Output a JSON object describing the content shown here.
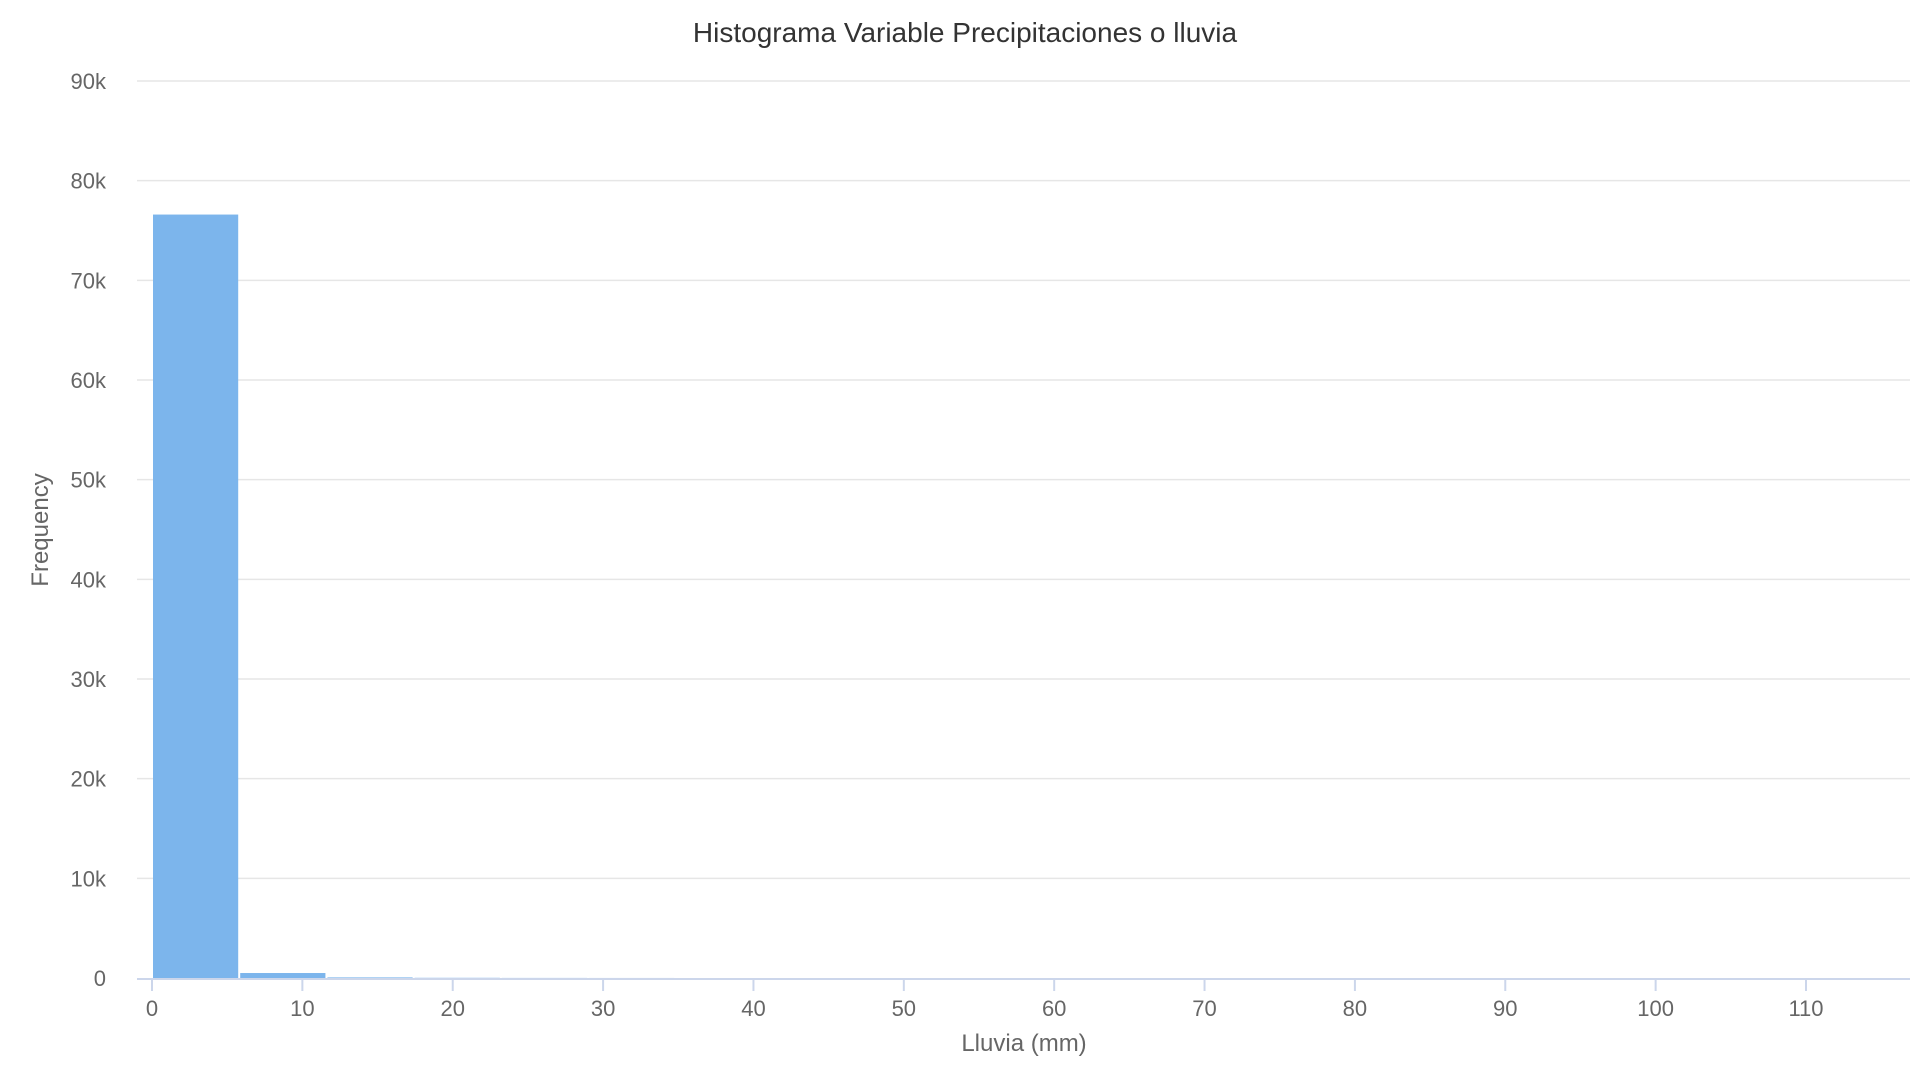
{
  "chart_data": {
    "type": "bar",
    "title": "Histograma Variable Precipitaciones o lluvia",
    "xlabel": "Lluvia (mm)",
    "ylabel": "Frequency",
    "bin_width": 5.8,
    "bins": [
      {
        "x0": 0,
        "x1": 5.8,
        "count": 76600
      },
      {
        "x0": 5.8,
        "x1": 11.6,
        "count": 500
      },
      {
        "x0": 11.6,
        "x1": 17.4,
        "count": 60
      },
      {
        "x0": 17.4,
        "x1": 23.2,
        "count": 20
      },
      {
        "x0": 23.2,
        "x1": 29.0,
        "count": 8
      },
      {
        "x0": 29.0,
        "x1": 34.8,
        "count": 4
      }
    ],
    "xlim": [
      0,
      117
    ],
    "ylim": [
      0,
      90000
    ],
    "x_ticks": [
      {
        "value": 0,
        "label": "0"
      },
      {
        "value": 10,
        "label": "10"
      },
      {
        "value": 20,
        "label": "20"
      },
      {
        "value": 30,
        "label": "30"
      },
      {
        "value": 40,
        "label": "40"
      },
      {
        "value": 50,
        "label": "50"
      },
      {
        "value": 60,
        "label": "60"
      },
      {
        "value": 70,
        "label": "70"
      },
      {
        "value": 80,
        "label": "80"
      },
      {
        "value": 90,
        "label": "90"
      },
      {
        "value": 100,
        "label": "100"
      },
      {
        "value": 110,
        "label": "110"
      }
    ],
    "y_ticks": [
      {
        "value": 0,
        "label": "0"
      },
      {
        "value": 10000,
        "label": "10k"
      },
      {
        "value": 20000,
        "label": "20k"
      },
      {
        "value": 30000,
        "label": "30k"
      },
      {
        "value": 40000,
        "label": "40k"
      },
      {
        "value": 50000,
        "label": "50k"
      },
      {
        "value": 60000,
        "label": "60k"
      },
      {
        "value": 70000,
        "label": "70k"
      },
      {
        "value": 80000,
        "label": "80k"
      },
      {
        "value": 90000,
        "label": "90k"
      }
    ],
    "grid": true,
    "bar_color": "#7cb5ec"
  }
}
